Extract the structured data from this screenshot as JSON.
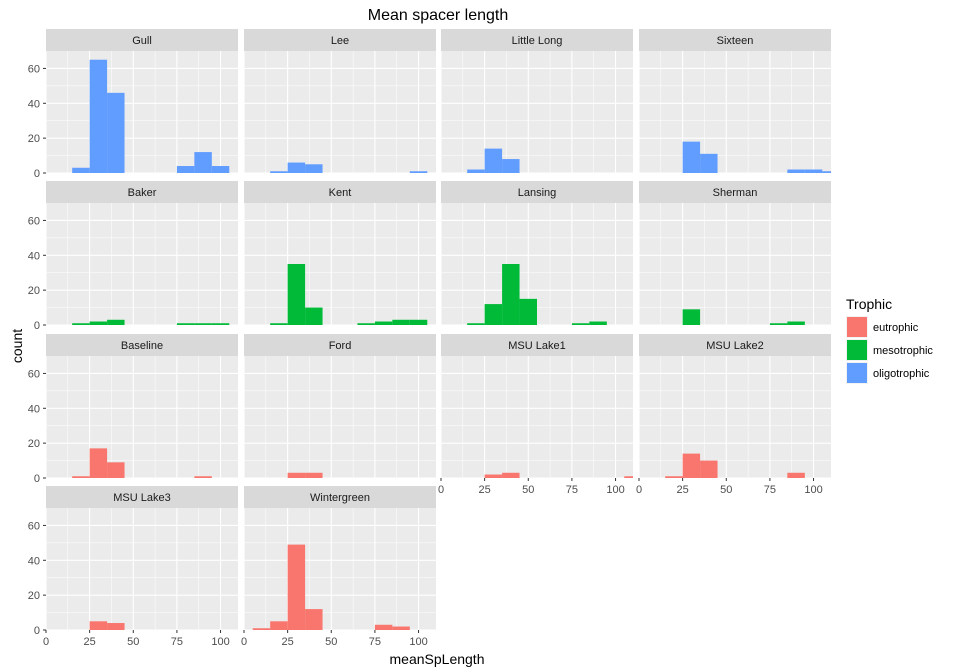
{
  "chart_data": {
    "type": "bar",
    "subtype": "faceted histogram",
    "title": "Mean spacer length",
    "xlabel": "meanSpLength",
    "ylabel": "count",
    "xlim": [
      0,
      110
    ],
    "ylim": [
      0,
      70
    ],
    "xticks": [
      0,
      25,
      50,
      75,
      100
    ],
    "yticks": [
      0,
      20,
      40,
      60
    ],
    "x_tick_labels": [
      "0",
      "25",
      "50",
      "75",
      "100"
    ],
    "y_tick_labels": [
      "0",
      "20",
      "40",
      "60"
    ],
    "bin_width": 10,
    "bin_centers": [
      10,
      20,
      30,
      40,
      50,
      60,
      70,
      80,
      90,
      100,
      110
    ],
    "grid": true,
    "legend": {
      "title": "Trophic",
      "position": "right",
      "entries": [
        {
          "label": "eutrophic",
          "color": "#F8766D"
        },
        {
          "label": "mesotrophic",
          "color": "#00BA38"
        },
        {
          "label": "oligotrophic",
          "color": "#619CFF"
        }
      ]
    },
    "colors": {
      "eutrophic": "#F8766D",
      "mesotrophic": "#00BA38",
      "oligotrophic": "#619CFF",
      "panel_background": "#EBEBEB",
      "strip_background": "#D9D9D9",
      "grid_line": "#FFFFFF"
    },
    "panels": [
      {
        "name": "Gull",
        "trophic": "oligotrophic",
        "counts": [
          0,
          3,
          65,
          46,
          0,
          0,
          0,
          4,
          12,
          4,
          0
        ]
      },
      {
        "name": "Lee",
        "trophic": "oligotrophic",
        "counts": [
          0,
          1,
          6,
          5,
          0,
          0,
          0,
          0,
          0,
          1,
          0
        ]
      },
      {
        "name": "Little Long",
        "trophic": "oligotrophic",
        "counts": [
          0,
          2,
          14,
          8,
          0,
          0,
          0,
          0,
          0,
          0,
          0
        ]
      },
      {
        "name": "Sixteen",
        "trophic": "oligotrophic",
        "counts": [
          0,
          0,
          18,
          11,
          0,
          0,
          0,
          0,
          2,
          2,
          1
        ]
      },
      {
        "name": "Baker",
        "trophic": "mesotrophic",
        "counts": [
          0,
          1,
          2,
          3,
          0,
          0,
          0,
          1,
          1,
          1,
          0
        ]
      },
      {
        "name": "Kent",
        "trophic": "mesotrophic",
        "counts": [
          0,
          1,
          35,
          10,
          0,
          0,
          1,
          2,
          3,
          3,
          0
        ]
      },
      {
        "name": "Lansing",
        "trophic": "mesotrophic",
        "counts": [
          0,
          1,
          12,
          35,
          15,
          0,
          0,
          1,
          2,
          0,
          0
        ]
      },
      {
        "name": "Sherman",
        "trophic": "mesotrophic",
        "counts": [
          0,
          0,
          9,
          0,
          0,
          0,
          0,
          1,
          2,
          0,
          0
        ]
      },
      {
        "name": "Baseline",
        "trophic": "eutrophic",
        "counts": [
          0,
          1,
          17,
          9,
          0,
          0,
          0,
          0,
          1,
          0,
          0
        ]
      },
      {
        "name": "Ford",
        "trophic": "eutrophic",
        "counts": [
          0,
          0,
          3,
          3,
          0,
          0,
          0,
          0,
          0,
          0,
          0
        ]
      },
      {
        "name": "MSU Lake1",
        "trophic": "eutrophic",
        "counts": [
          0,
          0,
          2,
          3,
          0,
          0,
          0,
          0,
          0,
          0,
          1
        ]
      },
      {
        "name": "MSU Lake2",
        "trophic": "eutrophic",
        "counts": [
          0,
          1,
          14,
          10,
          0,
          0,
          0,
          0,
          3,
          0,
          0
        ]
      },
      {
        "name": "MSU Lake3",
        "trophic": "eutrophic",
        "counts": [
          0,
          0,
          5,
          4,
          0,
          0,
          0,
          0,
          0,
          0,
          0
        ]
      },
      {
        "name": "Wintergreen",
        "trophic": "eutrophic",
        "counts": [
          1,
          5,
          49,
          12,
          0,
          0,
          0,
          3,
          2,
          0,
          0
        ]
      }
    ]
  }
}
